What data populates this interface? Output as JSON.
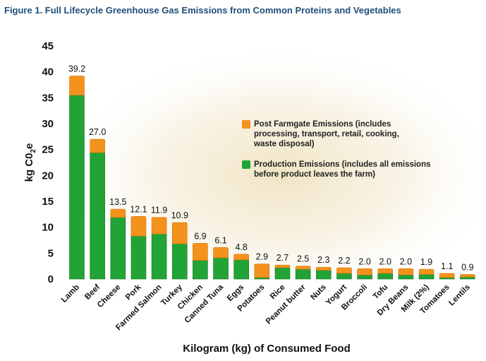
{
  "figure_title": "Figure 1. Full Lifecycle Greenhouse Gas Emissions from Common Proteins and Vegetables",
  "colors": {
    "production": "#22a336",
    "production_dark": "#137a25",
    "post_farmgate": "#f3921c",
    "post_farmgate_dark": "#d9770b",
    "title": "#1f4e79"
  },
  "chart_data": {
    "type": "bar",
    "stacked": true,
    "title": "Figure 1. Full Lifecycle Greenhouse Gas Emissions from Common Proteins and Vegetables",
    "xlabel": "Kilogram (kg) of Consumed Food",
    "ylabel_main": "kg C0",
    "ylabel_sub": "2",
    "ylabel_tail": "e",
    "ylim": [
      0,
      45
    ],
    "yticks": [
      0,
      5,
      10,
      15,
      20,
      25,
      30,
      35,
      40,
      45
    ],
    "categories": [
      "Lamb",
      "Beef",
      "Cheese",
      "Pork",
      "Farmed Salmon",
      "Turkey",
      "Chicken",
      "Canned Tuna",
      "Eggs",
      "Potatoes",
      "Rice",
      "Peanut butter",
      "Nuts",
      "Yogurt",
      "Broccoli",
      "Tofu",
      "Dry Beans",
      "Milk (2%)",
      "Tomatoes",
      "Lentils"
    ],
    "totals_labels": [
      "39.2",
      "27.0",
      "13.5",
      "12.1",
      "11.9",
      "10.9",
      "6.9",
      "6.1",
      "4.8",
      "2.9",
      "2.7",
      "2.5",
      "2.3",
      "2.2",
      "2.0",
      "2.0",
      "2.0",
      "1.9",
      "1.1",
      "0.9"
    ],
    "series": [
      {
        "name": "Production Emissions (includes all emissions before product leaves the farm)",
        "values": [
          35.5,
          24.4,
          11.9,
          8.3,
          8.7,
          6.8,
          3.6,
          4.1,
          3.7,
          0.3,
          2.2,
          1.9,
          1.7,
          1.1,
          0.8,
          1.1,
          0.8,
          0.9,
          0.3,
          0.4
        ]
      },
      {
        "name": "Post Farmgate Emissions (includes processing, transport, retail, cooking, waste disposal)",
        "values": [
          3.7,
          2.6,
          1.6,
          3.8,
          3.2,
          4.1,
          3.3,
          2.0,
          1.1,
          2.6,
          0.5,
          0.6,
          0.6,
          1.1,
          1.2,
          0.9,
          1.2,
          1.0,
          0.8,
          0.5
        ]
      }
    ],
    "legend": {
      "position": "right-middle",
      "items": [
        {
          "line1": "Post Farmgate Emissions (includes",
          "line2": "processing, transport, retail, cooking,",
          "line3": "waste disposal)"
        },
        {
          "line1": "Production Emissions (includes all emissions",
          "line2": "before product leaves the farm)",
          "line3": ""
        }
      ]
    }
  }
}
